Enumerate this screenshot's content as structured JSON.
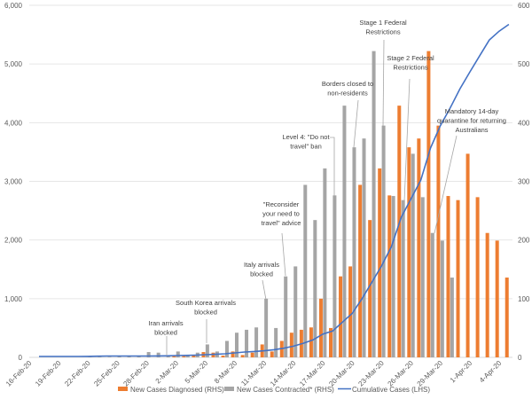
{
  "chart_data": {
    "type": "bar+line",
    "dates": [
      "16-Feb-20",
      "17-Feb-20",
      "18-Feb-20",
      "19-Feb-20",
      "20-Feb-20",
      "21-Feb-20",
      "22-Feb-20",
      "23-Feb-20",
      "24-Feb-20",
      "25-Feb-20",
      "26-Feb-20",
      "27-Feb-20",
      "28-Feb-20",
      "29-Feb-20",
      "1-Mar-20",
      "2-Mar-20",
      "3-Mar-20",
      "4-Mar-20",
      "5-Mar-20",
      "6-Mar-20",
      "7-Mar-20",
      "8-Mar-20",
      "9-Mar-20",
      "10-Mar-20",
      "11-Mar-20",
      "12-Mar-20",
      "13-Mar-20",
      "14-Mar-20",
      "15-Mar-20",
      "16-Mar-20",
      "17-Mar-20",
      "18-Mar-20",
      "19-Mar-20",
      "20-Mar-20",
      "21-Mar-20",
      "22-Mar-20",
      "23-Mar-20",
      "24-Mar-20",
      "25-Mar-20",
      "26-Mar-20",
      "27-Mar-20",
      "28-Mar-20",
      "29-Mar-20",
      "30-Mar-20",
      "31-Mar-20",
      "1-Apr-20",
      "2-Apr-20",
      "3-Apr-20",
      "4-Apr-20"
    ],
    "x_tick_labels": [
      "16-Feb-20",
      "19-Feb-20",
      "22-Feb-20",
      "25-Feb-20",
      "28-Feb-20",
      "2-Mar-20",
      "5-Mar-20",
      "8-Mar-20",
      "11-Mar-20",
      "14-Mar-20",
      "17-Mar-20",
      "20-Mar-20",
      "23-Mar-20",
      "26-Mar-20",
      "29-Mar-20",
      "1-Apr-20",
      "4-Apr-20"
    ],
    "series": [
      {
        "name": "New Cases Diagnosed (RHS)",
        "kind": "bar",
        "axis": "right",
        "color": "#ED7D31",
        "values": [
          0,
          0,
          0,
          0,
          0,
          0,
          0,
          0,
          0,
          0,
          0,
          0,
          0,
          0,
          2,
          2,
          3,
          9,
          8,
          3,
          10,
          4,
          8,
          22,
          10,
          28,
          42,
          47,
          51,
          100,
          50,
          138,
          155,
          294,
          234,
          322,
          276,
          429,
          358,
          373,
          522,
          395,
          275,
          268,
          347,
          273,
          212,
          199,
          136
        ]
      },
      {
        "name": "New Cases Contracted* (RHS)",
        "kind": "bar",
        "axis": "right",
        "color": "#A5A5A5",
        "values": [
          0,
          0,
          0,
          0,
          0,
          1,
          1,
          1,
          2,
          2,
          3,
          9,
          8,
          3,
          10,
          4,
          8,
          22,
          10,
          28,
          42,
          47,
          51,
          100,
          50,
          138,
          155,
          294,
          234,
          322,
          276,
          429,
          358,
          373,
          522,
          395,
          275,
          268,
          347,
          273,
          212,
          199,
          136,
          0,
          0,
          0,
          0,
          0,
          0
        ]
      },
      {
        "name": "Cumulative Cases (LHS)",
        "kind": "line",
        "axis": "left",
        "color": "#4472C4",
        "values": [
          15,
          15,
          15,
          15,
          15,
          17,
          20,
          22,
          23,
          23,
          23,
          23,
          24,
          25,
          30,
          33,
          38,
          45,
          52,
          60,
          75,
          90,
          100,
          112,
          130,
          155,
          190,
          240,
          298,
          397,
          449,
          600,
          750,
          1000,
          1280,
          1560,
          1884,
          2387,
          2700,
          3021,
          3570,
          3947,
          4250,
          4577,
          4860,
          5136,
          5408,
          5559,
          5675
        ]
      }
    ],
    "left_axis": {
      "ylim": [
        0,
        6000
      ],
      "tick_labels": [
        "0",
        "1,000",
        "2,000",
        "3,000",
        "4,000",
        "5,000",
        "6,000"
      ]
    },
    "right_axis": {
      "ylim": [
        0,
        600
      ],
      "tick_labels": [
        "0",
        "100",
        "200",
        "300",
        "400",
        "500",
        "600"
      ]
    },
    "grid": true,
    "legend_position": "bottom",
    "annotations": [
      {
        "lines": [
          "Iran arrivals",
          "blocked"
        ],
        "date": "28-Feb-20"
      },
      {
        "lines": [
          "South Korea arrivals",
          "blocked"
        ],
        "date": "2-Mar-20"
      },
      {
        "lines": [
          "Italy arrivals",
          "blocked"
        ],
        "date": "11-Mar-20"
      },
      {
        "lines": [
          "\"Reconsider",
          "your need to",
          "travel\" advice"
        ],
        "date": "12-Mar-20"
      },
      {
        "lines": [
          "Level 4: \"Do not",
          "travel\" ban"
        ],
        "date": "18-Mar-20"
      },
      {
        "lines": [
          "Borders closed to",
          "non-residents"
        ],
        "date": "20-Mar-20"
      },
      {
        "lines": [
          "Stage 1 Federal",
          "Restrictions"
        ],
        "date": "23-Mar-20"
      },
      {
        "lines": [
          "Stage 2 Federal",
          "Restrictions"
        ],
        "date": "26-Mar-20"
      },
      {
        "lines": [
          "Mandatory 14-day",
          "quarantine for returning",
          "Australians"
        ],
        "date": "29-Mar-20"
      }
    ]
  }
}
